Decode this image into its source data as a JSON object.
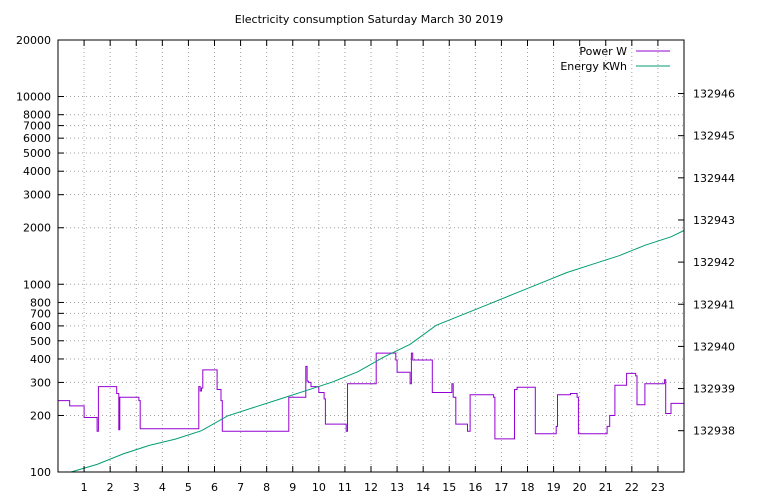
{
  "chart_data": {
    "type": "line",
    "title": "Electricity consumption Saturday March 30 2019",
    "x_axis": {
      "range": [
        0,
        24
      ],
      "ticks": [
        1,
        2,
        3,
        4,
        5,
        6,
        7,
        8,
        9,
        10,
        11,
        12,
        13,
        14,
        15,
        16,
        17,
        18,
        19,
        20,
        21,
        22,
        23
      ],
      "grid": true
    },
    "y_axis_left": {
      "scale": "log",
      "range": [
        100,
        20000
      ],
      "ticks": [
        100,
        200,
        300,
        400,
        500,
        600,
        700,
        800,
        1000,
        2000,
        3000,
        4000,
        5000,
        6000,
        7000,
        8000,
        10000,
        20000
      ],
      "grid": true
    },
    "y_axis_right": {
      "scale": "linear",
      "range": [
        132937.02,
        132947.27
      ],
      "ticks": [
        132938,
        132939,
        132940,
        132941,
        132942,
        132943,
        132944,
        132945,
        132946
      ]
    },
    "legend": {
      "placement": "top-right"
    },
    "series": [
      {
        "name": "Power W",
        "axis": "left",
        "color": "#9400d3",
        "step": true,
        "points": [
          [
            0,
            240
          ],
          [
            0.45,
            240
          ],
          [
            0.45,
            225
          ],
          [
            1.0,
            225
          ],
          [
            1.0,
            195
          ],
          [
            1.5,
            195
          ],
          [
            1.5,
            165
          ],
          [
            1.55,
            165
          ],
          [
            1.55,
            285
          ],
          [
            2.25,
            285
          ],
          [
            2.25,
            262
          ],
          [
            2.33,
            262
          ],
          [
            2.33,
            168
          ],
          [
            2.37,
            168
          ],
          [
            2.37,
            250
          ],
          [
            3.1,
            250
          ],
          [
            3.1,
            240
          ],
          [
            3.15,
            240
          ],
          [
            3.15,
            170
          ],
          [
            5.4,
            170
          ],
          [
            5.4,
            285
          ],
          [
            5.45,
            285
          ],
          [
            5.45,
            270
          ],
          [
            5.5,
            270
          ],
          [
            5.5,
            280
          ],
          [
            5.55,
            280
          ],
          [
            5.55,
            350
          ],
          [
            6.1,
            350
          ],
          [
            6.1,
            275
          ],
          [
            6.25,
            275
          ],
          [
            6.25,
            240
          ],
          [
            6.3,
            240
          ],
          [
            6.3,
            165
          ],
          [
            8.85,
            165
          ],
          [
            8.85,
            250
          ],
          [
            9.5,
            250
          ],
          [
            9.5,
            365
          ],
          [
            9.55,
            365
          ],
          [
            9.55,
            305
          ],
          [
            9.6,
            305
          ],
          [
            9.6,
            300
          ],
          [
            9.7,
            300
          ],
          [
            9.7,
            285
          ],
          [
            10.0,
            285
          ],
          [
            10.0,
            265
          ],
          [
            10.2,
            265
          ],
          [
            10.2,
            245
          ],
          [
            10.25,
            245
          ],
          [
            10.25,
            180
          ],
          [
            11.05,
            180
          ],
          [
            11.05,
            165
          ],
          [
            11.1,
            165
          ],
          [
            11.1,
            295
          ],
          [
            12.2,
            295
          ],
          [
            12.2,
            430
          ],
          [
            12.95,
            430
          ],
          [
            12.95,
            395
          ],
          [
            13.0,
            395
          ],
          [
            13.0,
            340
          ],
          [
            13.5,
            340
          ],
          [
            13.5,
            295
          ],
          [
            13.55,
            295
          ],
          [
            13.55,
            430
          ],
          [
            13.6,
            430
          ],
          [
            13.6,
            395
          ],
          [
            14.35,
            395
          ],
          [
            14.35,
            265
          ],
          [
            15.1,
            265
          ],
          [
            15.1,
            295
          ],
          [
            15.15,
            295
          ],
          [
            15.15,
            250
          ],
          [
            15.25,
            250
          ],
          [
            15.25,
            180
          ],
          [
            15.7,
            180
          ],
          [
            15.7,
            165
          ],
          [
            15.8,
            165
          ],
          [
            15.8,
            258
          ],
          [
            16.7,
            258
          ],
          [
            16.7,
            250
          ],
          [
            16.75,
            250
          ],
          [
            16.75,
            150
          ],
          [
            17.5,
            150
          ],
          [
            17.5,
            275
          ],
          [
            17.6,
            275
          ],
          [
            17.6,
            283
          ],
          [
            18.3,
            283
          ],
          [
            18.3,
            160
          ],
          [
            19.1,
            160
          ],
          [
            19.1,
            175
          ],
          [
            19.15,
            175
          ],
          [
            19.15,
            258
          ],
          [
            19.65,
            258
          ],
          [
            19.65,
            262
          ],
          [
            19.9,
            262
          ],
          [
            19.9,
            250
          ],
          [
            19.95,
            250
          ],
          [
            19.95,
            160
          ],
          [
            21.05,
            160
          ],
          [
            21.05,
            175
          ],
          [
            21.15,
            175
          ],
          [
            21.15,
            200
          ],
          [
            21.35,
            200
          ],
          [
            21.35,
            290
          ],
          [
            21.8,
            290
          ],
          [
            21.8,
            335
          ],
          [
            22.15,
            335
          ],
          [
            22.15,
            325
          ],
          [
            22.2,
            325
          ],
          [
            22.2,
            228
          ],
          [
            22.5,
            228
          ],
          [
            22.5,
            295
          ],
          [
            23.25,
            295
          ],
          [
            23.25,
            310
          ],
          [
            23.3,
            310
          ],
          [
            23.3,
            205
          ],
          [
            23.5,
            205
          ],
          [
            23.5,
            232
          ],
          [
            24,
            232
          ]
        ]
      },
      {
        "name": "Energy KWh",
        "axis": "right",
        "color": "#009e73",
        "step": false,
        "points": [
          [
            0,
            132936.9
          ],
          [
            0.5,
            132937.0
          ],
          [
            1.5,
            132937.2
          ],
          [
            2.5,
            132937.45
          ],
          [
            3.5,
            132937.65
          ],
          [
            4.5,
            132937.8
          ],
          [
            5.5,
            132938.0
          ],
          [
            6.5,
            132938.35
          ],
          [
            7.5,
            132938.55
          ],
          [
            8.5,
            132938.75
          ],
          [
            9.5,
            132938.95
          ],
          [
            10.5,
            132939.15
          ],
          [
            11.5,
            132939.4
          ],
          [
            12.5,
            132939.75
          ],
          [
            13.5,
            132940.05
          ],
          [
            14.5,
            132940.5
          ],
          [
            15.5,
            132940.75
          ],
          [
            16.5,
            132941.0
          ],
          [
            17.5,
            132941.25
          ],
          [
            18.5,
            132941.5
          ],
          [
            19.5,
            132941.75
          ],
          [
            20.5,
            132941.95
          ],
          [
            21.5,
            132942.15
          ],
          [
            22.5,
            132942.4
          ],
          [
            23.5,
            132942.6
          ],
          [
            24,
            132942.75
          ]
        ]
      }
    ]
  }
}
